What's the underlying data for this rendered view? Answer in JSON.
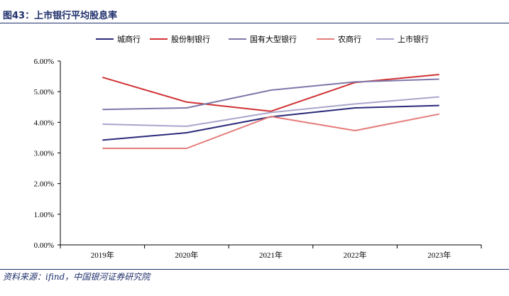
{
  "figure": {
    "title": "图43：上市银行平均股息率",
    "source": "资料来源：ifind，中国银河证券研究院"
  },
  "chart_data": {
    "type": "line",
    "categories": [
      "2019年",
      "2020年",
      "2021年",
      "2022年",
      "2023年"
    ],
    "ylim": [
      0,
      6
    ],
    "yticks": [
      "0.00%",
      "1.00%",
      "2.00%",
      "3.00%",
      "4.00%",
      "5.00%",
      "6.00%"
    ],
    "ytick_values": [
      0,
      1,
      2,
      3,
      4,
      5,
      6
    ],
    "grid": false,
    "legend_position": "top",
    "series": [
      {
        "name": "城商行",
        "color": "#2b2a7a",
        "values": [
          3.42,
          3.66,
          4.18,
          4.47,
          4.55
        ]
      },
      {
        "name": "股份制银行",
        "color": "#d03234",
        "values": [
          5.47,
          4.66,
          4.36,
          5.3,
          5.56
        ]
      },
      {
        "name": "国有大型银行",
        "color": "#7d78a9",
        "values": [
          4.42,
          4.47,
          5.05,
          5.32,
          5.41
        ]
      },
      {
        "name": "农商行",
        "color": "#e47c7b",
        "values": [
          3.15,
          3.15,
          4.19,
          3.73,
          4.27
        ]
      },
      {
        "name": "上市银行",
        "color": "#a9a6cc",
        "values": [
          3.94,
          3.87,
          4.32,
          4.6,
          4.83
        ]
      }
    ]
  }
}
